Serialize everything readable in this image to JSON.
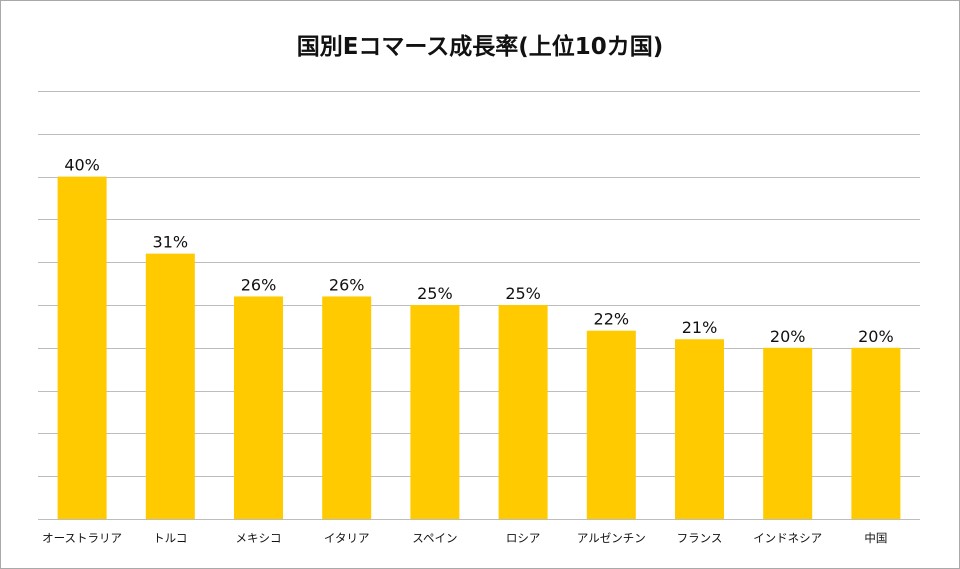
{
  "chart_data": {
    "type": "bar",
    "title": "国別Eコマース成長率(上位10カ国)",
    "categories": [
      "オーストラリア",
      "トルコ",
      "メキシコ",
      "イタリア",
      "スペイン",
      "ロシア",
      "アルゼンチン",
      "フランス",
      "インドネシア",
      "中国"
    ],
    "values": [
      40,
      31,
      26,
      26,
      25,
      25,
      22,
      21,
      20,
      20
    ],
    "value_labels": [
      "40%",
      "31%",
      "26%",
      "26%",
      "25%",
      "25%",
      "22%",
      "21%",
      "20%",
      "20%"
    ],
    "unit": "%",
    "ylim": [
      0,
      50
    ],
    "y_axis_visible": false,
    "grid": true,
    "legend": "none",
    "bar_color": "#FFCA00",
    "grid_color": "#bdbdbd"
  }
}
